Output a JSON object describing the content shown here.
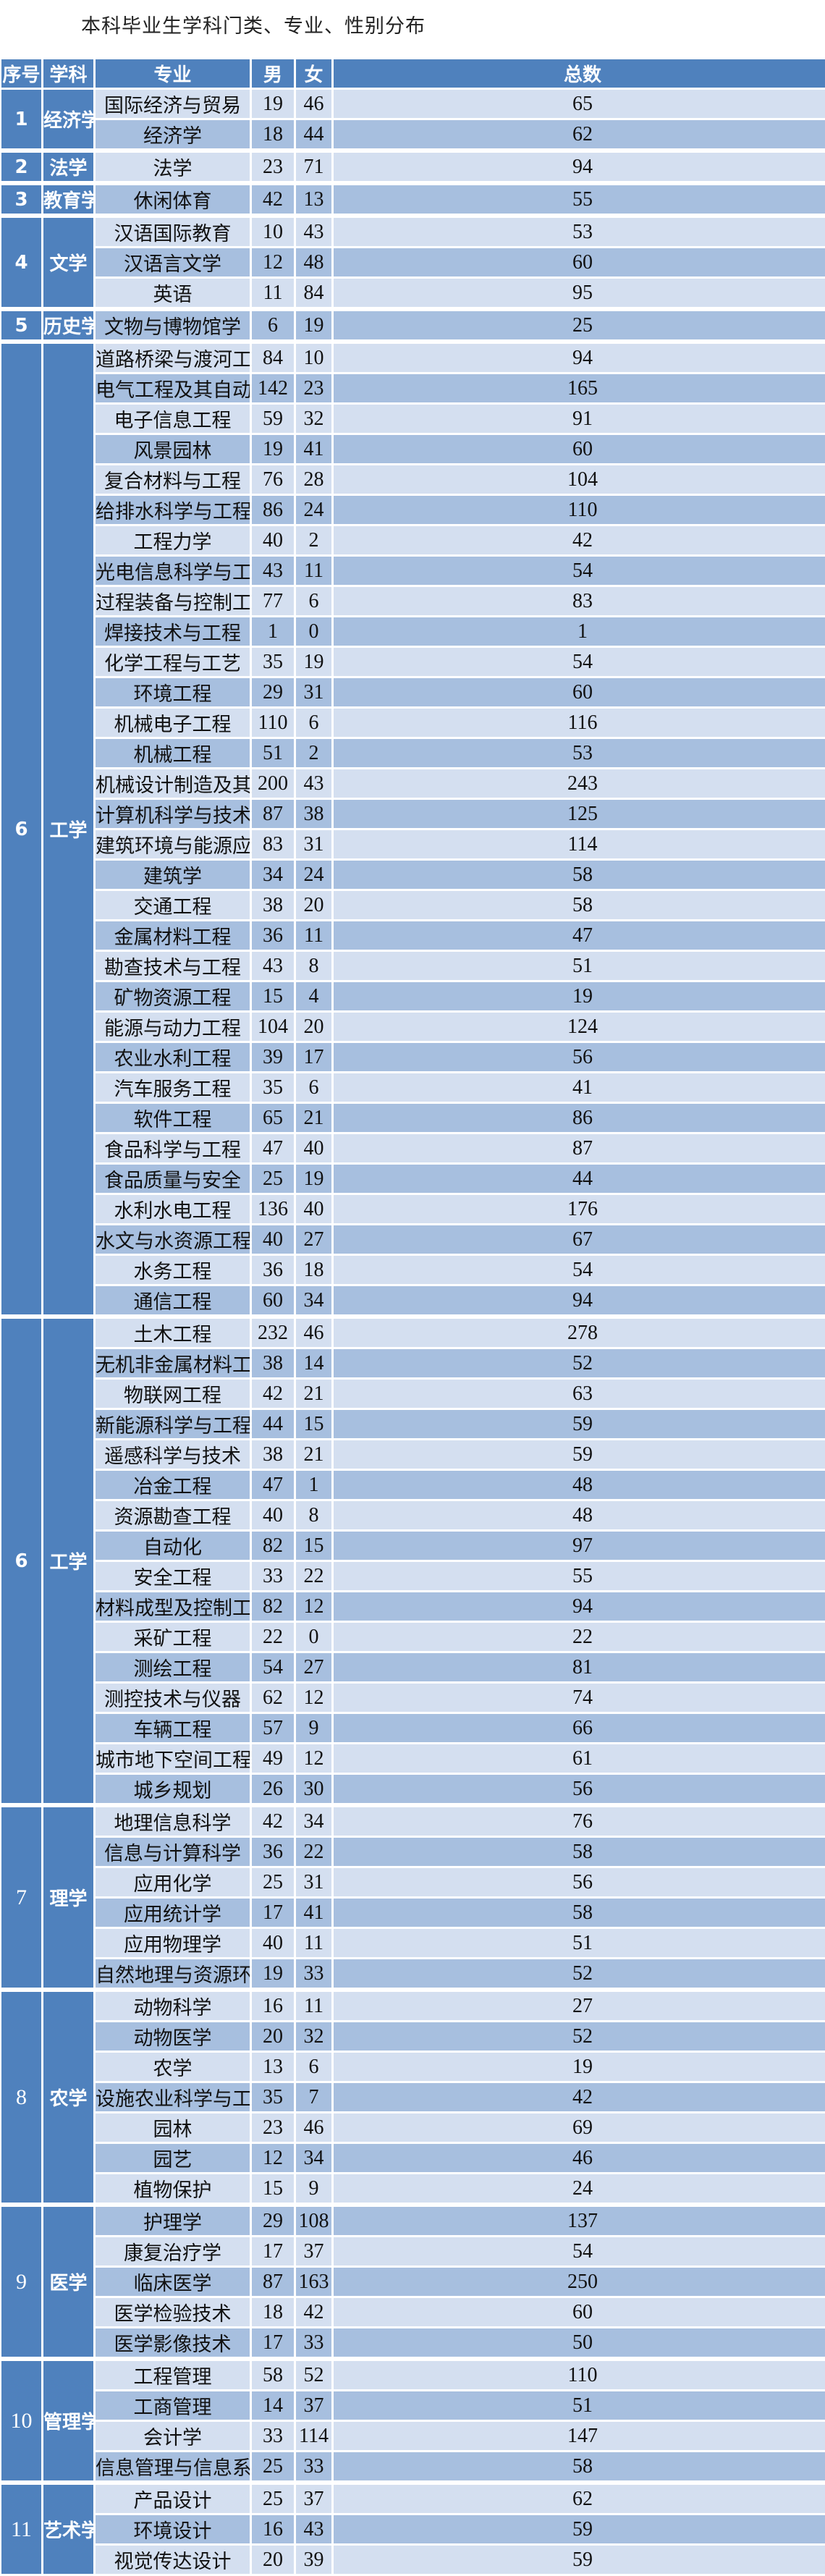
{
  "title": "本科毕业生学科门类、专业、性别分布",
  "headers": [
    "序号",
    "学科",
    "专业",
    "男",
    "女",
    "总数"
  ],
  "colors": {
    "header": "#4f81bd",
    "row_light": "#d4dff0",
    "row_dark": "#a7bfdf"
  },
  "groups": [
    {
      "no": "1",
      "subject": "经济学",
      "majors": [
        [
          "国际经济与贸易",
          "19",
          "46",
          "65"
        ],
        [
          "经济学",
          "18",
          "44",
          "62"
        ]
      ]
    },
    {
      "no": "2",
      "subject": "法学",
      "majors": [
        [
          "法学",
          "23",
          "71",
          "94"
        ]
      ]
    },
    {
      "no": "3",
      "subject": "教育学",
      "majors": [
        [
          "休闲体育",
          "42",
          "13",
          "55"
        ]
      ]
    },
    {
      "no": "4",
      "subject": "文学",
      "majors": [
        [
          "汉语国际教育",
          "10",
          "43",
          "53"
        ],
        [
          "汉语言文学",
          "12",
          "48",
          "60"
        ],
        [
          "英语",
          "11",
          "84",
          "95"
        ]
      ]
    },
    {
      "no": "5",
      "subject": "历史学",
      "majors": [
        [
          "文物与博物馆学",
          "6",
          "19",
          "25"
        ]
      ]
    },
    {
      "no": "6",
      "subject": "工学",
      "majors": [
        [
          "道路桥梁与渡河工程",
          "84",
          "10",
          "94"
        ],
        [
          "电气工程及其自动化",
          "142",
          "23",
          "165"
        ],
        [
          "电子信息工程",
          "59",
          "32",
          "91"
        ],
        [
          "风景园林",
          "19",
          "41",
          "60"
        ],
        [
          "复合材料与工程",
          "76",
          "28",
          "104"
        ],
        [
          "给排水科学与工程",
          "86",
          "24",
          "110"
        ],
        [
          "工程力学",
          "40",
          "2",
          "42"
        ],
        [
          "光电信息科学与工程",
          "43",
          "11",
          "54"
        ],
        [
          "过程装备与控制工程",
          "77",
          "6",
          "83"
        ],
        [
          "焊接技术与工程",
          "1",
          "0",
          "1"
        ],
        [
          "化学工程与工艺",
          "35",
          "19",
          "54"
        ],
        [
          "环境工程",
          "29",
          "31",
          "60"
        ],
        [
          "机械电子工程",
          "110",
          "6",
          "116"
        ],
        [
          "机械工程",
          "51",
          "2",
          "53"
        ],
        [
          "机械设计制造及其自动化",
          "200",
          "43",
          "243"
        ],
        [
          "计算机科学与技术",
          "87",
          "38",
          "125"
        ],
        [
          "建筑环境与能源应用工程",
          "83",
          "31",
          "114"
        ],
        [
          "建筑学",
          "34",
          "24",
          "58"
        ],
        [
          "交通工程",
          "38",
          "20",
          "58"
        ],
        [
          "金属材料工程",
          "36",
          "11",
          "47"
        ],
        [
          "勘查技术与工程",
          "43",
          "8",
          "51"
        ],
        [
          "矿物资源工程",
          "15",
          "4",
          "19"
        ],
        [
          "能源与动力工程",
          "104",
          "20",
          "124"
        ],
        [
          "农业水利工程",
          "39",
          "17",
          "56"
        ],
        [
          "汽车服务工程",
          "35",
          "6",
          "41"
        ],
        [
          "软件工程",
          "65",
          "21",
          "86"
        ],
        [
          "食品科学与工程",
          "47",
          "40",
          "87"
        ],
        [
          "食品质量与安全",
          "25",
          "19",
          "44"
        ],
        [
          "水利水电工程",
          "136",
          "40",
          "176"
        ],
        [
          "水文与水资源工程",
          "40",
          "27",
          "67"
        ],
        [
          "水务工程",
          "36",
          "18",
          "54"
        ],
        [
          "通信工程",
          "60",
          "34",
          "94"
        ]
      ]
    },
    {
      "no": "6",
      "subject": "工学",
      "majors": [
        [
          "土木工程",
          "232",
          "46",
          "278"
        ],
        [
          "无机非金属材料工程",
          "38",
          "14",
          "52"
        ],
        [
          "物联网工程",
          "42",
          "21",
          "63"
        ],
        [
          "新能源科学与工程",
          "44",
          "15",
          "59"
        ],
        [
          "遥感科学与技术",
          "38",
          "21",
          "59"
        ],
        [
          "冶金工程",
          "47",
          "1",
          "48"
        ],
        [
          "资源勘查工程",
          "40",
          "8",
          "48"
        ],
        [
          "自动化",
          "82",
          "15",
          "97"
        ],
        [
          "安全工程",
          "33",
          "22",
          "55"
        ],
        [
          "材料成型及控制工程",
          "82",
          "12",
          "94"
        ],
        [
          "采矿工程",
          "22",
          "0",
          "22"
        ],
        [
          "测绘工程",
          "54",
          "27",
          "81"
        ],
        [
          "测控技术与仪器",
          "62",
          "12",
          "74"
        ],
        [
          "车辆工程",
          "57",
          "9",
          "66"
        ],
        [
          "城市地下空间工程",
          "49",
          "12",
          "61"
        ],
        [
          "城乡规划",
          "26",
          "30",
          "56"
        ]
      ]
    },
    {
      "no": "7",
      "subject": "理学",
      "majors": [
        [
          "地理信息科学",
          "42",
          "34",
          "76"
        ],
        [
          "信息与计算科学",
          "36",
          "22",
          "58"
        ],
        [
          "应用化学",
          "25",
          "31",
          "56"
        ],
        [
          "应用统计学",
          "17",
          "41",
          "58"
        ],
        [
          "应用物理学",
          "40",
          "11",
          "51"
        ],
        [
          "自然地理与资源环境",
          "19",
          "33",
          "52"
        ]
      ]
    },
    {
      "no": "8",
      "subject": "农学",
      "majors": [
        [
          "动物科学",
          "16",
          "11",
          "27"
        ],
        [
          "动物医学",
          "20",
          "32",
          "52"
        ],
        [
          "农学",
          "13",
          "6",
          "19"
        ],
        [
          "设施农业科学与工程",
          "35",
          "7",
          "42"
        ],
        [
          "园林",
          "23",
          "46",
          "69"
        ],
        [
          "园艺",
          "12",
          "34",
          "46"
        ],
        [
          "植物保护",
          "15",
          "9",
          "24"
        ]
      ]
    },
    {
      "no": "9",
      "subject": "医学",
      "majors": [
        [
          "护理学",
          "29",
          "108",
          "137"
        ],
        [
          "康复治疗学",
          "17",
          "37",
          "54"
        ],
        [
          "临床医学",
          "87",
          "163",
          "250"
        ],
        [
          "医学检验技术",
          "18",
          "42",
          "60"
        ],
        [
          "医学影像技术",
          "17",
          "33",
          "50"
        ]
      ]
    },
    {
      "no": "10",
      "subject": "管理学",
      "majors": [
        [
          "工程管理",
          "58",
          "52",
          "110"
        ],
        [
          "工商管理",
          "14",
          "37",
          "51"
        ],
        [
          "会计学",
          "33",
          "114",
          "147"
        ],
        [
          "信息管理与信息系统",
          "25",
          "33",
          "58"
        ]
      ]
    },
    {
      "no": "11",
      "subject": "艺术学",
      "majors": [
        [
          "产品设计",
          "25",
          "37",
          "62"
        ],
        [
          "环境设计",
          "16",
          "43",
          "59"
        ],
        [
          "视觉传达设计",
          "20",
          "39",
          "59"
        ]
      ]
    }
  ]
}
